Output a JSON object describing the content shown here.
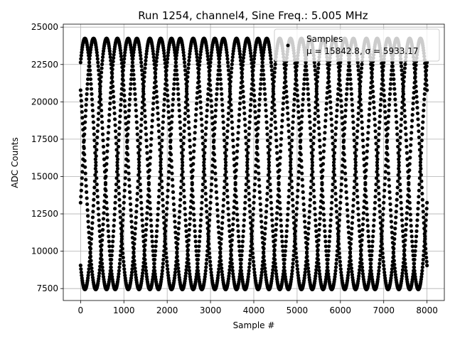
{
  "chart_data": {
    "type": "scatter",
    "title": "Run 1254, channel4, Sine Freq.: 5.005 MHz",
    "xlabel": "Sample #",
    "ylabel": "ADC Counts",
    "xlim": [
      -400,
      8400
    ],
    "ylim": [
      6700,
      25200
    ],
    "xticks": [
      0,
      1000,
      2000,
      3000,
      4000,
      5000,
      6000,
      7000,
      8000
    ],
    "yticks": [
      7500,
      10000,
      12500,
      15000,
      17500,
      20000,
      22500,
      25000
    ],
    "grid": true,
    "marker_color": "#000000",
    "series": [
      {
        "name": "Samples",
        "n_samples": 8000,
        "model": "sine",
        "mean": 15842.8,
        "amplitude": 8400,
        "phase_families": [
          {
            "peaks_x": [
              600,
              1600,
              2600,
              3600,
              4600,
              5600,
              6600,
              7600
            ]
          },
          {
            "peaks_x": [
              300,
              1300,
              2300,
              3300,
              4300,
              5300,
              6300,
              7300
            ]
          },
          {
            "peaks_x": [
              100,
              1100,
              2100,
              3100,
              4100,
              5100,
              6100,
              7100
            ]
          },
          {
            "peaks_x": [
              850,
              1850,
              2850,
              3850,
              4850,
              5850,
              6850,
              7850
            ]
          }
        ]
      }
    ],
    "legend": {
      "position": "top-right",
      "title": "Samples",
      "entry": "μ = 15842.8, σ = 5933.17"
    }
  }
}
